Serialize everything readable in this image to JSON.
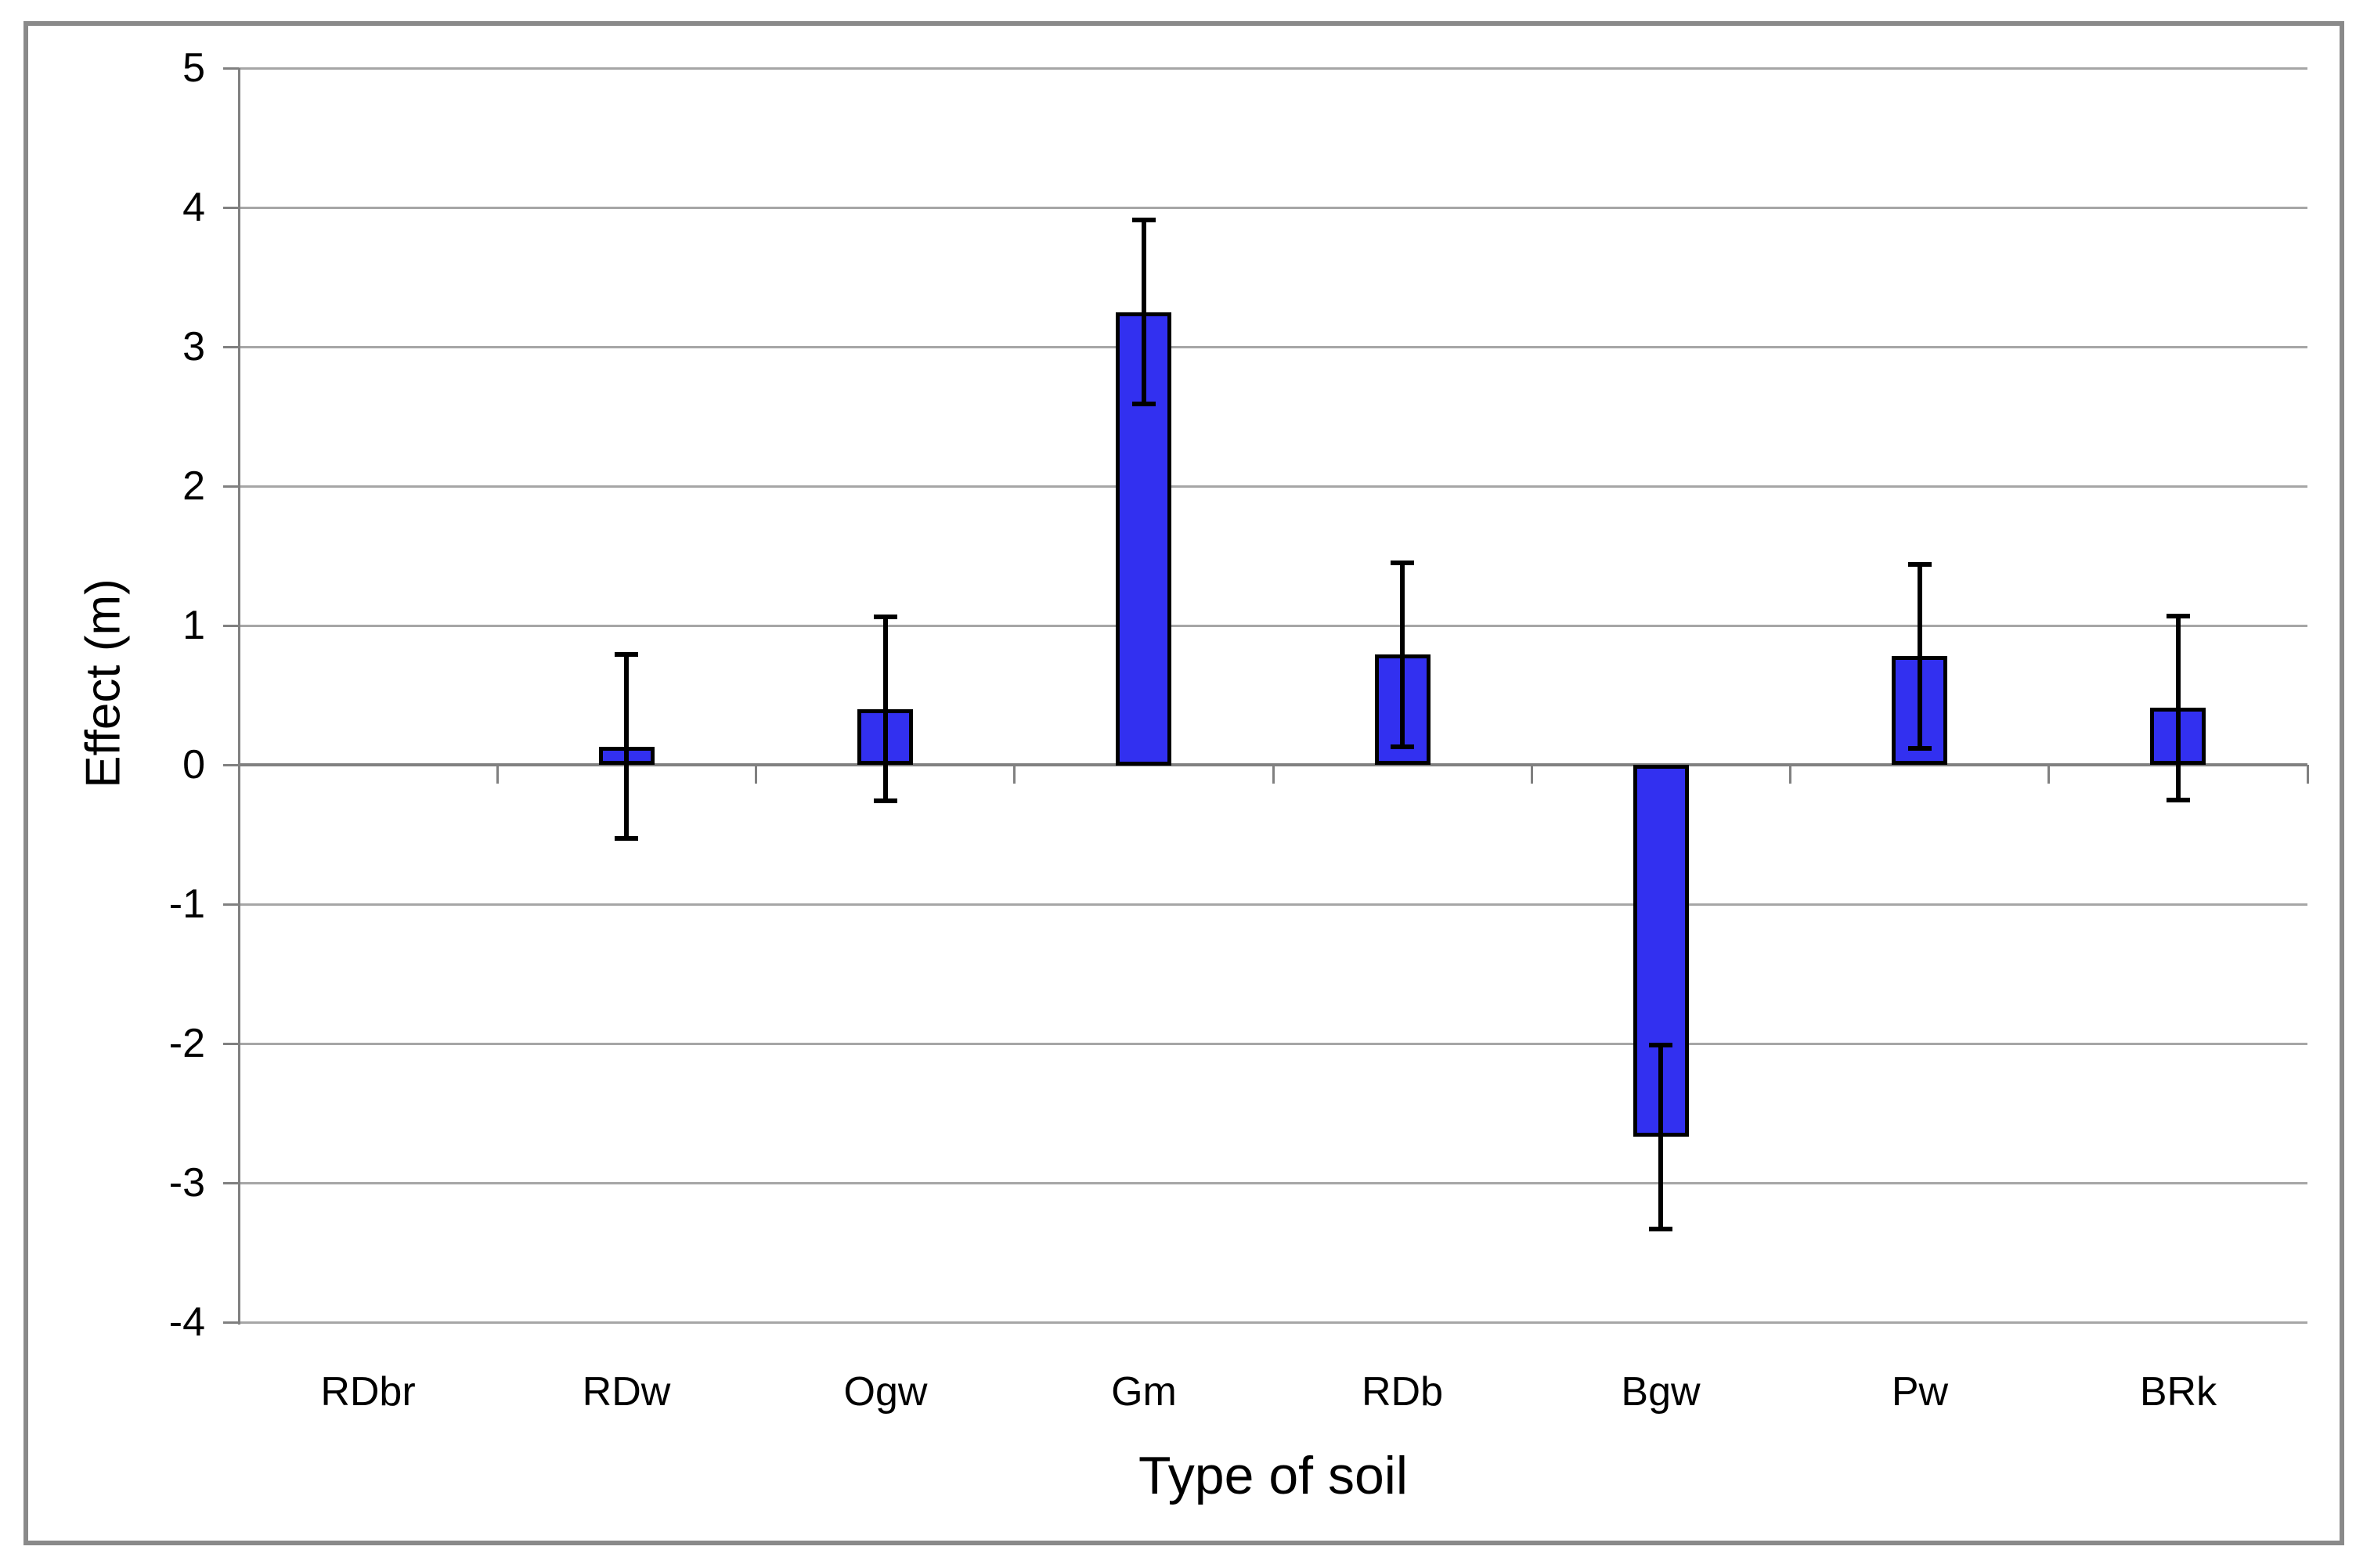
{
  "figure": {
    "background": "#ffffff",
    "border_color": "#8a8a8a"
  },
  "chart_data": {
    "type": "bar",
    "title": "",
    "xlabel": "Type of soil",
    "ylabel": "Effect (m)",
    "categories": [
      "RDbr",
      "RDw",
      "Ogw",
      "Gm",
      "RDb",
      "Bgw",
      "Pw",
      "BRk"
    ],
    "values": [
      null,
      0.13,
      0.4,
      3.25,
      0.79,
      -2.67,
      0.78,
      0.41
    ],
    "error_bars": [
      null,
      0.66,
      0.66,
      0.66,
      0.66,
      0.66,
      0.66,
      0.66
    ],
    "ylim": [
      -4,
      5
    ],
    "yticks": [
      5,
      4,
      3,
      2,
      1,
      0,
      -1,
      -2,
      -3,
      -4
    ],
    "grid": true,
    "legend": false,
    "axis_crosses_at": 0,
    "bar_fill": "#3230f0",
    "bar_border": "#000000",
    "error_color": "#000000",
    "gridline_color": "#a6a6a6",
    "axis_color": "#808080",
    "text_color": "#000000"
  }
}
